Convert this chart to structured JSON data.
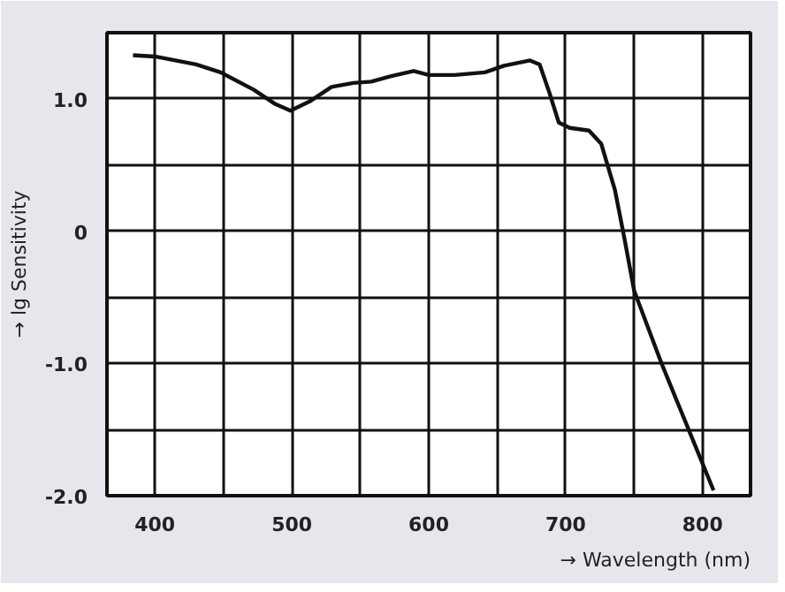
{
  "chart_data": {
    "type": "line",
    "xlabel": "→ Wavelength (nm)",
    "ylabel": "→ lg Sensitivity",
    "xlim": [
      365,
      835
    ],
    "ylim": [
      -2.0,
      1.5
    ],
    "xticks": [
      {
        "value": 400,
        "label": "400"
      },
      {
        "value": 450,
        "label": null
      },
      {
        "value": 500,
        "label": "500"
      },
      {
        "value": 550,
        "label": null
      },
      {
        "value": 600,
        "label": "600"
      },
      {
        "value": 650,
        "label": null
      },
      {
        "value": 700,
        "label": "700"
      },
      {
        "value": 750,
        "label": null
      },
      {
        "value": 800,
        "label": "800"
      }
    ],
    "yticks": [
      {
        "value": -2.0,
        "label": "-2.0"
      },
      {
        "value": -1.5,
        "label": null
      },
      {
        "value": -1.0,
        "label": "-1.0"
      },
      {
        "value": -0.5,
        "label": null
      },
      {
        "value": 0,
        "label": "0"
      },
      {
        "value": 0.5,
        "label": null
      },
      {
        "value": 1.0,
        "label": "1.0"
      }
    ],
    "grid": true,
    "marker": "none",
    "line_style": "solid",
    "series": [
      {
        "color": "#111111",
        "x": [
          384,
          400,
          430,
          448,
          472,
          488,
          499,
          513,
          529,
          545,
          558,
          572,
          589,
          600,
          619,
          641,
          655,
          674,
          681,
          688,
          695,
          703,
          717,
          726,
          736,
          743,
          750,
          770,
          808
        ],
        "values": [
          1.33,
          1.32,
          1.26,
          1.2,
          1.07,
          0.96,
          0.91,
          0.98,
          1.09,
          1.12,
          1.13,
          1.17,
          1.21,
          1.18,
          1.18,
          1.2,
          1.25,
          1.29,
          1.26,
          1.05,
          0.82,
          0.78,
          0.76,
          0.66,
          0.31,
          -0.06,
          -0.45,
          -1.0,
          -1.96
        ]
      }
    ]
  }
}
